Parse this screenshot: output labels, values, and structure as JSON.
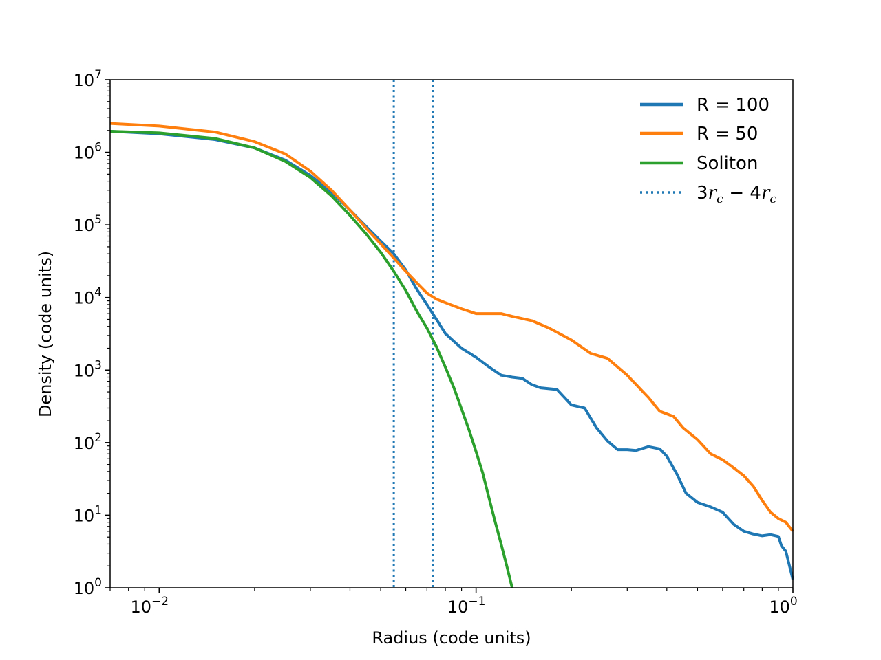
{
  "chart_data": {
    "type": "line",
    "xlabel": "Radius (code units)",
    "ylabel": "Density (code units)",
    "x_scale": "log",
    "y_scale": "log",
    "xlim": [
      0.007,
      1.0
    ],
    "ylim": [
      1,
      10000000
    ],
    "x_ticks": [
      {
        "value": 0.01,
        "base": "10",
        "exp": "−2"
      },
      {
        "value": 0.1,
        "base": "10",
        "exp": "−1"
      },
      {
        "value": 1,
        "base": "10",
        "exp": "0"
      }
    ],
    "y_ticks": [
      {
        "value": 1,
        "base": "10",
        "exp": "0"
      },
      {
        "value": 10,
        "base": "10",
        "exp": "1"
      },
      {
        "value": 100,
        "base": "10",
        "exp": "2"
      },
      {
        "value": 1000,
        "base": "10",
        "exp": "3"
      },
      {
        "value": 10000,
        "base": "10",
        "exp": "4"
      },
      {
        "value": 100000,
        "base": "10",
        "exp": "5"
      },
      {
        "value": 1000000,
        "base": "10",
        "exp": "6"
      },
      {
        "value": 10000000,
        "base": "10",
        "exp": "7"
      }
    ],
    "grid": false,
    "legend_position": "top-right",
    "series": [
      {
        "name": "R = 100",
        "color": "#1f77b4",
        "style": "solid",
        "points": [
          [
            0.007,
            1950000.0
          ],
          [
            0.01,
            1800000.0
          ],
          [
            0.015,
            1500000.0
          ],
          [
            0.02,
            1150000.0
          ],
          [
            0.025,
            780000.0
          ],
          [
            0.03,
            480000.0
          ],
          [
            0.035,
            280000.0
          ],
          [
            0.04,
            160000.0
          ],
          [
            0.045,
            95000.0
          ],
          [
            0.05,
            60000.0
          ],
          [
            0.055,
            40000.0
          ],
          [
            0.06,
            24000.0
          ],
          [
            0.065,
            13000.0
          ],
          [
            0.07,
            8000.0
          ],
          [
            0.075,
            5000.0
          ],
          [
            0.08,
            3200.0
          ],
          [
            0.085,
            2500.0
          ],
          [
            0.09,
            2000.0
          ],
          [
            0.1,
            1500.0
          ],
          [
            0.11,
            1100.0
          ],
          [
            0.12,
            850
          ],
          [
            0.13,
            800
          ],
          [
            0.14,
            770
          ],
          [
            0.15,
            630
          ],
          [
            0.16,
            570
          ],
          [
            0.18,
            540
          ],
          [
            0.2,
            330
          ],
          [
            0.22,
            300
          ],
          [
            0.24,
            160
          ],
          [
            0.26,
            105
          ],
          [
            0.28,
            80
          ],
          [
            0.3,
            80
          ],
          [
            0.32,
            78
          ],
          [
            0.35,
            88
          ],
          [
            0.38,
            82
          ],
          [
            0.4,
            65
          ],
          [
            0.43,
            37
          ],
          [
            0.46,
            20
          ],
          [
            0.5,
            15
          ],
          [
            0.55,
            13
          ],
          [
            0.6,
            11
          ],
          [
            0.65,
            7.5
          ],
          [
            0.7,
            6
          ],
          [
            0.75,
            5.5
          ],
          [
            0.8,
            5.2
          ],
          [
            0.85,
            5.4
          ],
          [
            0.9,
            5.1
          ],
          [
            0.92,
            3.8
          ],
          [
            0.95,
            3.2
          ],
          [
            1.0,
            1.3
          ]
        ]
      },
      {
        "name": "R = 50",
        "color": "#ff7f0e",
        "style": "solid",
        "points": [
          [
            0.007,
            2500000.0
          ],
          [
            0.01,
            2300000.0
          ],
          [
            0.015,
            1900000.0
          ],
          [
            0.02,
            1400000.0
          ],
          [
            0.025,
            950000.0
          ],
          [
            0.03,
            550000.0
          ],
          [
            0.035,
            300000.0
          ],
          [
            0.04,
            160000.0
          ],
          [
            0.045,
            90000.0
          ],
          [
            0.05,
            55000.0
          ],
          [
            0.055,
            35000.0
          ],
          [
            0.06,
            23000.0
          ],
          [
            0.065,
            16000.0
          ],
          [
            0.07,
            11500.0
          ],
          [
            0.075,
            9500.0
          ],
          [
            0.08,
            8500.0
          ],
          [
            0.09,
            7000.0
          ],
          [
            0.1,
            6000.0
          ],
          [
            0.11,
            6000.0
          ],
          [
            0.12,
            6000.0
          ],
          [
            0.13,
            5500.0
          ],
          [
            0.15,
            4800.0
          ],
          [
            0.17,
            3800.0
          ],
          [
            0.2,
            2600.0
          ],
          [
            0.23,
            1700.0
          ],
          [
            0.26,
            1450.0
          ],
          [
            0.3,
            850
          ],
          [
            0.35,
            420
          ],
          [
            0.38,
            270
          ],
          [
            0.42,
            230
          ],
          [
            0.45,
            160
          ],
          [
            0.5,
            110
          ],
          [
            0.55,
            70
          ],
          [
            0.6,
            58
          ],
          [
            0.65,
            45
          ],
          [
            0.7,
            35
          ],
          [
            0.75,
            25
          ],
          [
            0.8,
            16
          ],
          [
            0.85,
            11
          ],
          [
            0.9,
            9
          ],
          [
            0.95,
            8
          ],
          [
            1.0,
            6
          ]
        ]
      },
      {
        "name": "Soliton",
        "color": "#2ca02c",
        "style": "solid",
        "points": [
          [
            0.007,
            1950000.0
          ],
          [
            0.01,
            1850000.0
          ],
          [
            0.015,
            1550000.0
          ],
          [
            0.02,
            1150000.0
          ],
          [
            0.025,
            750000.0
          ],
          [
            0.03,
            450000.0
          ],
          [
            0.035,
            250000.0
          ],
          [
            0.04,
            135000.0
          ],
          [
            0.045,
            75000.0
          ],
          [
            0.05,
            42000.0
          ],
          [
            0.055,
            23000.0
          ],
          [
            0.06,
            12500.0
          ],
          [
            0.065,
            6500.0
          ],
          [
            0.07,
            3800.0
          ],
          [
            0.075,
            2100.0
          ],
          [
            0.08,
            1100.0
          ],
          [
            0.085,
            580
          ],
          [
            0.09,
            290
          ],
          [
            0.095,
            150
          ],
          [
            0.1,
            75
          ],
          [
            0.105,
            38
          ],
          [
            0.11,
            17
          ],
          [
            0.115,
            8
          ],
          [
            0.12,
            4
          ],
          [
            0.125,
            2
          ],
          [
            0.13,
            1
          ]
        ]
      },
      {
        "name": "3r_c − 4r_c",
        "color": "#1f77b4",
        "style": "dotted",
        "x_values": [
          0.055,
          0.073
        ]
      }
    ]
  },
  "legend": {
    "items": [
      {
        "label": "R = 100",
        "color": "#1f77b4",
        "style": "solid"
      },
      {
        "label": "R = 50",
        "color": "#ff7f0e",
        "style": "solid"
      },
      {
        "label": "Soliton",
        "color": "#2ca02c",
        "style": "solid"
      },
      {
        "label_num1": "3",
        "label_var1": "r",
        "label_sub1": "c",
        "label_op": " − ",
        "label_num2": "4",
        "label_var2": "r",
        "label_sub2": "c",
        "color": "#1f77b4",
        "style": "dotted"
      }
    ]
  }
}
